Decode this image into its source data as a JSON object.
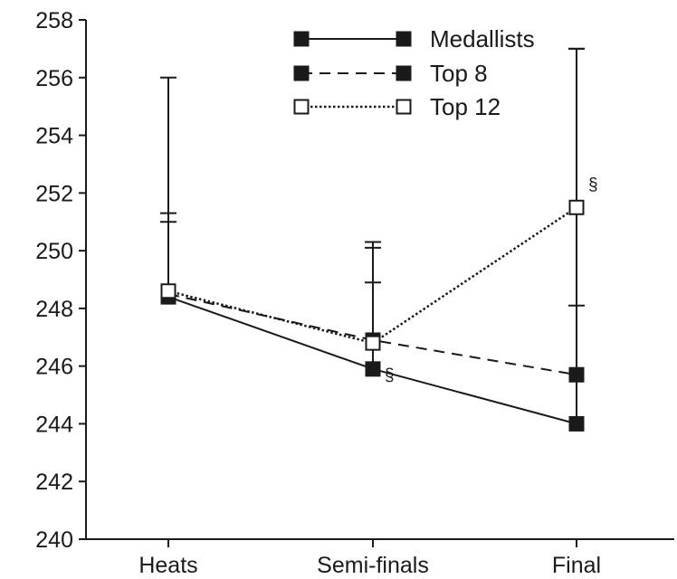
{
  "chart_data": {
    "type": "line",
    "categories": [
      "Heats",
      "Semi-finals",
      "Final"
    ],
    "ylim": [
      240,
      258
    ],
    "yticks": [
      240,
      242,
      244,
      246,
      248,
      250,
      252,
      254,
      256,
      258
    ],
    "ytick_labels": [
      "240",
      "242",
      "244",
      "246",
      "248",
      "250",
      "252",
      "254",
      "256",
      "258"
    ],
    "grid": false,
    "legend_position": "top-right",
    "series": [
      {
        "name": "Medallists",
        "line_style": "solid",
        "marker": "filled-square",
        "values": [
          248.4,
          245.9,
          244.0
        ],
        "error_upper": [
          251.0,
          250.1,
          257.0
        ]
      },
      {
        "name": "Top 8",
        "line_style": "dashed",
        "marker": "filled-square",
        "values": [
          248.5,
          246.9,
          245.7
        ],
        "error_upper": [
          256.0,
          248.9,
          248.1
        ]
      },
      {
        "name": "Top 12",
        "line_style": "dotted",
        "marker": "open-square",
        "values": [
          248.6,
          246.8,
          251.5
        ],
        "error_upper": [
          251.3,
          250.3,
          257.0
        ]
      }
    ],
    "annotations": [
      {
        "text": "§",
        "category": "Semi-finals",
        "y": 245.5
      },
      {
        "text": "§",
        "category": "Final",
        "y": 252.1
      }
    ],
    "colors": {
      "ink": "#1a1a1a",
      "background": "#ffffff"
    }
  }
}
